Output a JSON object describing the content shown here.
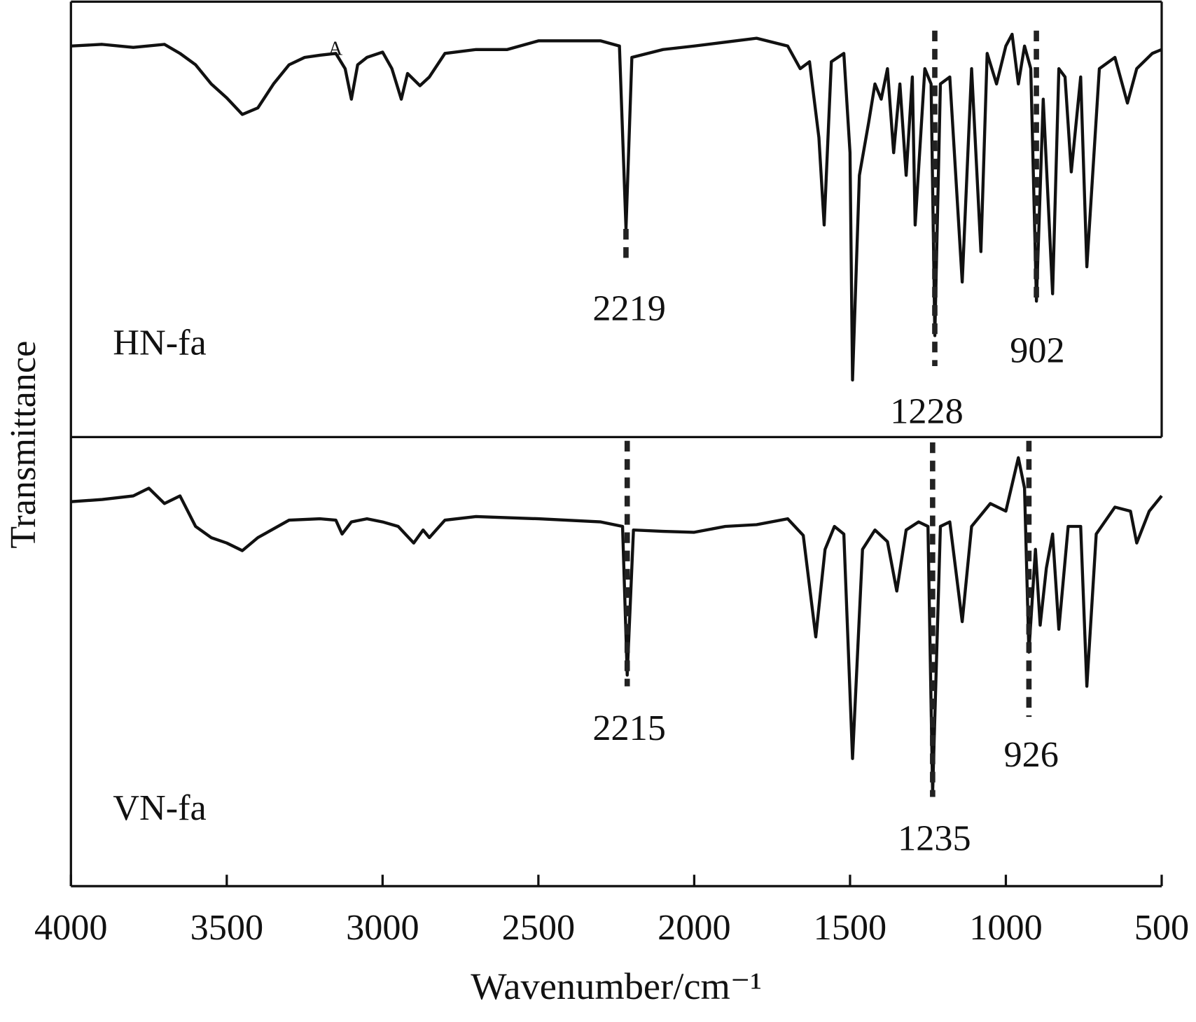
{
  "chart_data": [
    {
      "type": "line",
      "ylim": [
        0,
        100
      ],
      "x": [
        4000,
        3900,
        3800,
        3700,
        3650,
        3600,
        3550,
        3500,
        3450,
        3400,
        3350,
        3300,
        3250,
        3200,
        3150,
        3120,
        3100,
        3080,
        3050,
        3000,
        2970,
        2940,
        2920,
        2880,
        2850,
        2800,
        2700,
        2600,
        2500,
        2300,
        2240,
        2219,
        2200,
        2100,
        2000,
        1900,
        1800,
        1700,
        1660,
        1630,
        1600,
        1583,
        1560,
        1520,
        1500,
        1492,
        1470,
        1440,
        1420,
        1400,
        1380,
        1360,
        1340,
        1320,
        1300,
        1291,
        1260,
        1240,
        1228,
        1210,
        1180,
        1140,
        1110,
        1080,
        1060,
        1030,
        1000,
        980,
        960,
        940,
        920,
        902,
        880,
        850,
        830,
        810,
        790,
        760,
        740,
        700,
        650,
        610,
        580,
        530,
        500
      ],
      "series": [
        {
          "name": "HN-fa",
          "color": "#111111",
          "values": [
            89.8,
            90.2,
            89.5,
            90.2,
            88.1,
            85.5,
            81.1,
            77.9,
            74.1,
            75.6,
            81.1,
            85.5,
            87.2,
            87.7,
            88.1,
            84.6,
            77.6,
            85.5,
            87.2,
            88.4,
            84.6,
            77.6,
            83.5,
            80.7,
            82.7,
            88.1,
            89.0,
            89.0,
            91.0,
            91.0,
            89.8,
            47.8,
            87.2,
            89.0,
            89.8,
            90.7,
            91.6,
            89.8,
            84.6,
            86.2,
            68.8,
            48.7,
            86.2,
            88.1,
            65.3,
            13.1,
            60.1,
            72.3,
            81.1,
            77.6,
            84.6,
            65.3,
            81.1,
            60.1,
            82.7,
            48.7,
            84.6,
            81.1,
            23.3,
            81.1,
            82.7,
            35.6,
            84.6,
            42.6,
            88.1,
            81.1,
            89.8,
            92.5,
            81.1,
            89.8,
            84.6,
            31.2,
            77.6,
            32.9,
            84.6,
            82.7,
            60.9,
            82.7,
            39.1,
            84.6,
            87.2,
            76.7,
            84.6,
            88.1,
            89.0
          ]
        }
      ],
      "annotations": [
        {
          "x": 2219,
          "label": "2219"
        },
        {
          "x": 1228,
          "label": "1228"
        },
        {
          "x": 902,
          "label": "902"
        }
      ],
      "labels": [
        {
          "x": 3150,
          "text": "A"
        }
      ]
    },
    {
      "type": "line",
      "ylim": [
        0,
        100
      ],
      "xlim": [
        4000,
        500
      ],
      "xticks": [
        4000,
        3500,
        3000,
        2500,
        2000,
        1500,
        1000,
        500
      ],
      "xlabel": "Wavenumber/cm⁻¹",
      "ylabel": "Transmittance",
      "x": [
        4000,
        3900,
        3800,
        3750,
        3700,
        3650,
        3600,
        3550,
        3500,
        3450,
        3400,
        3300,
        3200,
        3150,
        3130,
        3100,
        3050,
        3000,
        2950,
        2900,
        2870,
        2850,
        2800,
        2700,
        2500,
        2300,
        2230,
        2215,
        2195,
        2100,
        2000,
        1900,
        1800,
        1700,
        1650,
        1610,
        1580,
        1550,
        1520,
        1492,
        1460,
        1420,
        1380,
        1350,
        1320,
        1280,
        1250,
        1235,
        1210,
        1180,
        1140,
        1110,
        1050,
        1000,
        960,
        940,
        926,
        905,
        890,
        870,
        850,
        830,
        800,
        760,
        740,
        710,
        650,
        600,
        580,
        540,
        500
      ],
      "series": [
        {
          "name": "VN-fa",
          "color": "#111111",
          "values": [
            85.6,
            86.1,
            86.9,
            88.6,
            85.2,
            86.9,
            80.1,
            77.6,
            76.4,
            74.7,
            77.6,
            81.5,
            81.8,
            81.5,
            78.4,
            81.1,
            81.8,
            81.1,
            80.1,
            76.4,
            79.3,
            77.6,
            81.5,
            82.3,
            81.8,
            81.1,
            80.1,
            47.0,
            79.3,
            79.0,
            78.8,
            80.1,
            80.5,
            81.8,
            78.1,
            55.5,
            75.0,
            80.1,
            78.4,
            28.4,
            75.0,
            79.3,
            76.7,
            65.7,
            79.3,
            81.1,
            80.1,
            20.7,
            80.1,
            81.1,
            58.9,
            80.1,
            85.2,
            83.5,
            95.4,
            88.6,
            52.1,
            75.0,
            58.1,
            70.8,
            78.4,
            57.2,
            80.1,
            80.1,
            44.5,
            78.4,
            84.4,
            83.5,
            76.4,
            83.5,
            86.9
          ]
        }
      ],
      "annotations": [
        {
          "x": 2215,
          "label": "2215"
        },
        {
          "x": 1235,
          "label": "1235"
        },
        {
          "x": 926,
          "label": "926"
        }
      ]
    }
  ]
}
